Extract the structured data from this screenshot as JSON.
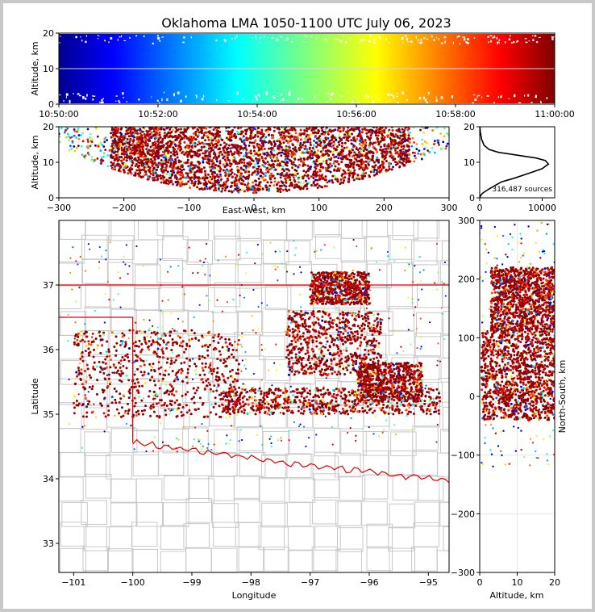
{
  "chart_data": [
    {
      "type": "scatter",
      "panel": "time-height",
      "title": "Oklahoma LMA 1050-1100 UTC July 06, 2023",
      "ylabel": "Altitude, km",
      "ylim": [
        0,
        20
      ],
      "yticks": [
        "0",
        "10",
        "20"
      ],
      "xlim": [
        "10:50:00",
        "11:00:00"
      ],
      "xticks": [
        "10:50:00",
        "10:52:00",
        "10:54:00",
        "10:56:00",
        "10:58:00",
        "11:00:00"
      ],
      "color_encoding": "time (jet colormap)",
      "grid": true
    },
    {
      "type": "scatter",
      "panel": "east-west-height",
      "xlabel": "East-West, km",
      "ylabel": "Altitude, km",
      "xlim": [
        -300,
        300
      ],
      "ylim": [
        0,
        20
      ],
      "xticks": [
        "-300",
        "-200",
        "-100",
        "0",
        "100",
        "200",
        "300"
      ],
      "yticks": [
        "0",
        "10",
        "20"
      ],
      "dense_clusters": [
        {
          "x_range": [
            -220,
            -90
          ],
          "alt_range": [
            1,
            20
          ]
        },
        {
          "x_range": [
            -90,
            60
          ],
          "alt_range": [
            1,
            20
          ]
        },
        {
          "x_range": [
            60,
            240
          ],
          "alt_range": [
            1,
            20
          ]
        }
      ]
    },
    {
      "type": "line",
      "panel": "altitude-histogram",
      "annotation": "316,487 sources",
      "xlim": [
        0,
        12000
      ],
      "xticks": [
        "0",
        "10000"
      ],
      "ylim": [
        0,
        20
      ],
      "yticks": [
        "0",
        "10",
        "20"
      ],
      "x": [
        0,
        200,
        400,
        700,
        1500,
        2500,
        3500,
        5500,
        8000,
        10000,
        11000,
        10500,
        9000,
        6000,
        3000,
        1500,
        700,
        300,
        100,
        20
      ],
      "y": [
        0,
        0.8,
        1.2,
        1.6,
        2.5,
        3.5,
        4.5,
        5.5,
        7,
        8.2,
        9.5,
        10.5,
        11.2,
        12,
        12.8,
        13.6,
        14.8,
        16.5,
        18.5,
        20
      ]
    },
    {
      "type": "scatter",
      "panel": "plan-view-map",
      "xlabel": "Longitude",
      "ylabel": "Latitude",
      "xlim": [
        -101.25,
        -94.65
      ],
      "ylim": [
        32.55,
        38.0
      ],
      "xticks": [
        "-101",
        "-100",
        "-99",
        "-98",
        "-97",
        "-96",
        "-95"
      ],
      "yticks": [
        "33",
        "34",
        "35",
        "36",
        "37"
      ],
      "features": [
        "county outlines",
        "Oklahoma state border (red)"
      ],
      "storm_swaths": [
        {
          "lon_range": [
            -101.0,
            -98.2
          ],
          "lat_range": [
            34.95,
            36.3
          ]
        },
        {
          "lon_range": [
            -98.5,
            -94.8
          ],
          "lat_range": [
            35.0,
            35.4
          ]
        },
        {
          "lon_range": [
            -97.4,
            -95.8
          ],
          "lat_range": [
            35.6,
            36.6
          ]
        },
        {
          "lon_range": [
            -97.0,
            -96.0
          ],
          "lat_range": [
            36.7,
            37.2
          ]
        },
        {
          "lon_range": [
            -96.2,
            -95.1
          ],
          "lat_range": [
            35.2,
            35.8
          ]
        }
      ]
    },
    {
      "type": "scatter",
      "panel": "north-south-height",
      "xlabel": "Altitude, km",
      "ylabel": "North-South, km",
      "xlim": [
        0,
        20
      ],
      "ylim": [
        -300,
        300
      ],
      "xticks": [
        "0",
        "10",
        "20"
      ],
      "yticks": [
        "300",
        "200",
        "100",
        "0",
        "-100",
        "-200",
        "-300"
      ],
      "dense_clusters": [
        {
          "y_range": [
            -40,
            110
          ],
          "alt_range": [
            0.5,
            20
          ]
        },
        {
          "y_range": [
            110,
            220
          ],
          "alt_range": [
            3,
            20
          ]
        }
      ]
    }
  ]
}
